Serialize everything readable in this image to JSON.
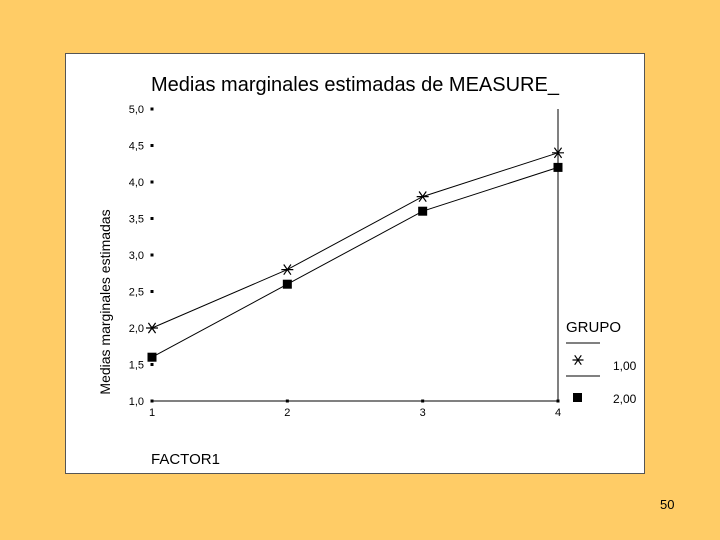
{
  "slide": {
    "page_number": "50"
  },
  "chart_data": {
    "type": "line",
    "title": "Medias marginales estimadas de MEASURE_",
    "xlabel": "FACTOR1",
    "ylabel": "Medias marginales estimadas",
    "categories": [
      "1",
      "2",
      "3",
      "4"
    ],
    "ylim": [
      1.0,
      5.0
    ],
    "y_ticks": [
      "1,0",
      "1,5",
      "2,0",
      "2,5",
      "3,0",
      "3,5",
      "4,0",
      "4,5",
      "5,0"
    ],
    "grid": false,
    "legend": {
      "title": "GRUPO",
      "placement": "right"
    },
    "series": [
      {
        "name": "1,00",
        "marker": "asterisk",
        "values": [
          2.0,
          2.8,
          3.8,
          4.4
        ]
      },
      {
        "name": "2,00",
        "marker": "square",
        "values": [
          1.6,
          2.6,
          3.6,
          4.2
        ]
      }
    ],
    "colors": {
      "line": "#000000",
      "background": "#ffcc66",
      "panel": "#ffffff"
    }
  }
}
